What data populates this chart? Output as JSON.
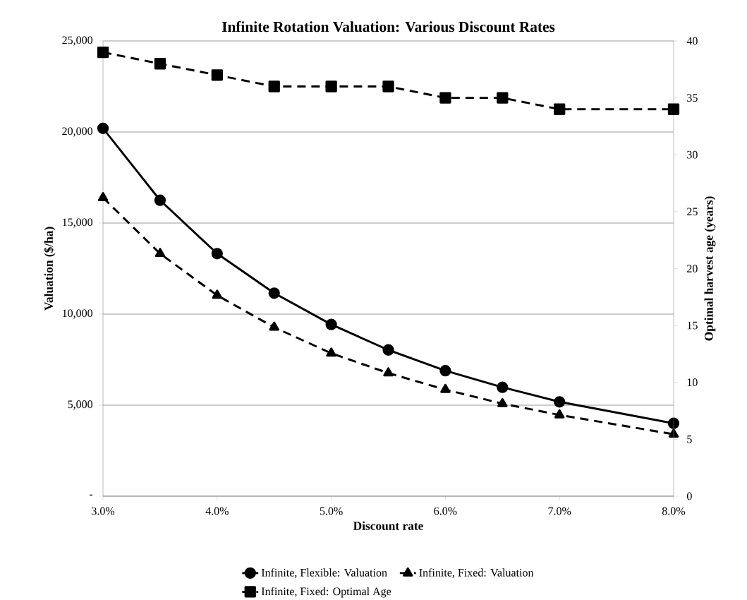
{
  "chart_data": {
    "type": "line",
    "title": "Infinite Rotation Valuation: Various Discount Rates",
    "xlabel": "Discount rate",
    "ylabel": "Valuation ($/ha)",
    "y2label": "Optimal harvest age (years)",
    "series": [
      {
        "name": "Infinite, Flexible: Valuation",
        "color": "#000000",
        "marker": "circle",
        "line_style": "solid",
        "x": [
          3.0,
          3.5,
          4.0,
          4.5,
          5.0,
          5.5,
          6.0,
          6.5,
          7.0,
          8.0
        ],
        "values": [
          20200,
          16250,
          13320,
          11150,
          9430,
          8030,
          6890,
          5980,
          5180,
          4000
        ]
      },
      {
        "name": "Infinite, Fixed: Valuation",
        "color": "#000000",
        "marker": "triangle",
        "line_style": "dashed",
        "x": [
          3.0,
          3.5,
          4.0,
          4.5,
          5.0,
          5.5,
          6.0,
          6.5,
          7.0,
          8.0
        ],
        "values": [
          16390,
          13320,
          11030,
          9270,
          7850,
          6760,
          5850,
          5080,
          4460,
          3400
        ]
      },
      {
        "name": "Infinite, Fixed: Optimal Age",
        "color": "#000000",
        "marker": "square",
        "line_style": "dashed",
        "axis": "y2",
        "x": [
          3.0,
          3.5,
          4.0,
          4.5,
          5.0,
          5.5,
          6.0,
          6.5,
          7.0,
          8.0
        ],
        "values": [
          39,
          38,
          37,
          36,
          36,
          36,
          35,
          35,
          34,
          34
        ]
      }
    ],
    "xlim": [
      3.0,
      8.0
    ],
    "xticks": [
      {
        "value": 3,
        "label": "3.0%"
      },
      {
        "value": 4,
        "label": "4.0%"
      },
      {
        "value": 5,
        "label": "5.0%"
      },
      {
        "value": 6,
        "label": "6.0%"
      },
      {
        "value": 7,
        "label": "7.0%"
      },
      {
        "value": 8,
        "label": "8.0%"
      }
    ],
    "ylim": [
      0,
      25000
    ],
    "yticks": [
      {
        "value": 0,
        "label": "-"
      },
      {
        "value": 5000,
        "label": "5,000"
      },
      {
        "value": 10000,
        "label": "10,000"
      },
      {
        "value": 15000,
        "label": "15,000"
      },
      {
        "value": 20000,
        "label": "20,000"
      },
      {
        "value": 25000,
        "label": "25,000"
      }
    ],
    "y2lim": [
      0,
      40
    ],
    "y2ticks": [
      0,
      5,
      10,
      15,
      20,
      25,
      30,
      35,
      40
    ],
    "grid": "y",
    "legend": "bottom"
  }
}
